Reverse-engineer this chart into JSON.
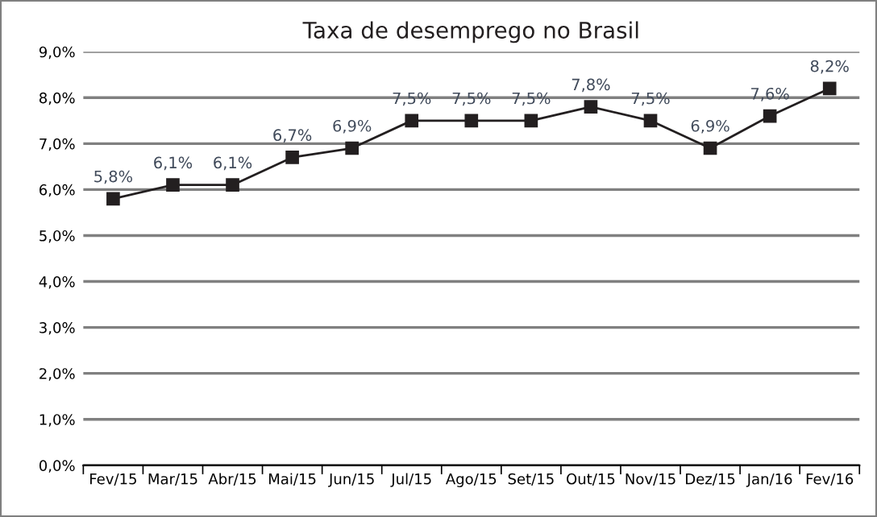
{
  "chart_data": {
    "type": "line",
    "title": "Taxa de desemprego no Brasil",
    "categories": [
      "Fev/15",
      "Mar/15",
      "Abr/15",
      "Mai/15",
      "Jun/15",
      "Jul/15",
      "Ago/15",
      "Set/15",
      "Out/15",
      "Nov/15",
      "Dez/15",
      "Jan/16",
      "Fev/16"
    ],
    "series": [
      {
        "color": "#231f20",
        "values": [
          5.8,
          6.1,
          6.1,
          6.7,
          6.9,
          7.5,
          7.5,
          7.5,
          7.8,
          7.5,
          6.9,
          7.6,
          8.2
        ],
        "value_labels": [
          "5,8%",
          "6,1%",
          "6,1%",
          "6,7%",
          "6,9%",
          "7,5%",
          "7,5%",
          "7,5%",
          "7,8%",
          "7,5%",
          "6,9%",
          "7,6%",
          "8,2%"
        ]
      }
    ],
    "ylim": [
      0,
      9
    ],
    "yticks": [
      {
        "value": 0,
        "label": "0,0%"
      },
      {
        "value": 1,
        "label": "1,0%"
      },
      {
        "value": 2,
        "label": "2,0%"
      },
      {
        "value": 3,
        "label": "3,0%"
      },
      {
        "value": 4,
        "label": "4,0%"
      },
      {
        "value": 5,
        "label": "5,0%"
      },
      {
        "value": 6,
        "label": "6,0%"
      },
      {
        "value": 7,
        "label": "7,0%"
      },
      {
        "value": 8,
        "label": "8,0%"
      },
      {
        "value": 9,
        "label": "9,0%"
      }
    ],
    "grid": "y",
    "marker": "square",
    "line_style": "solid",
    "legend": false
  }
}
